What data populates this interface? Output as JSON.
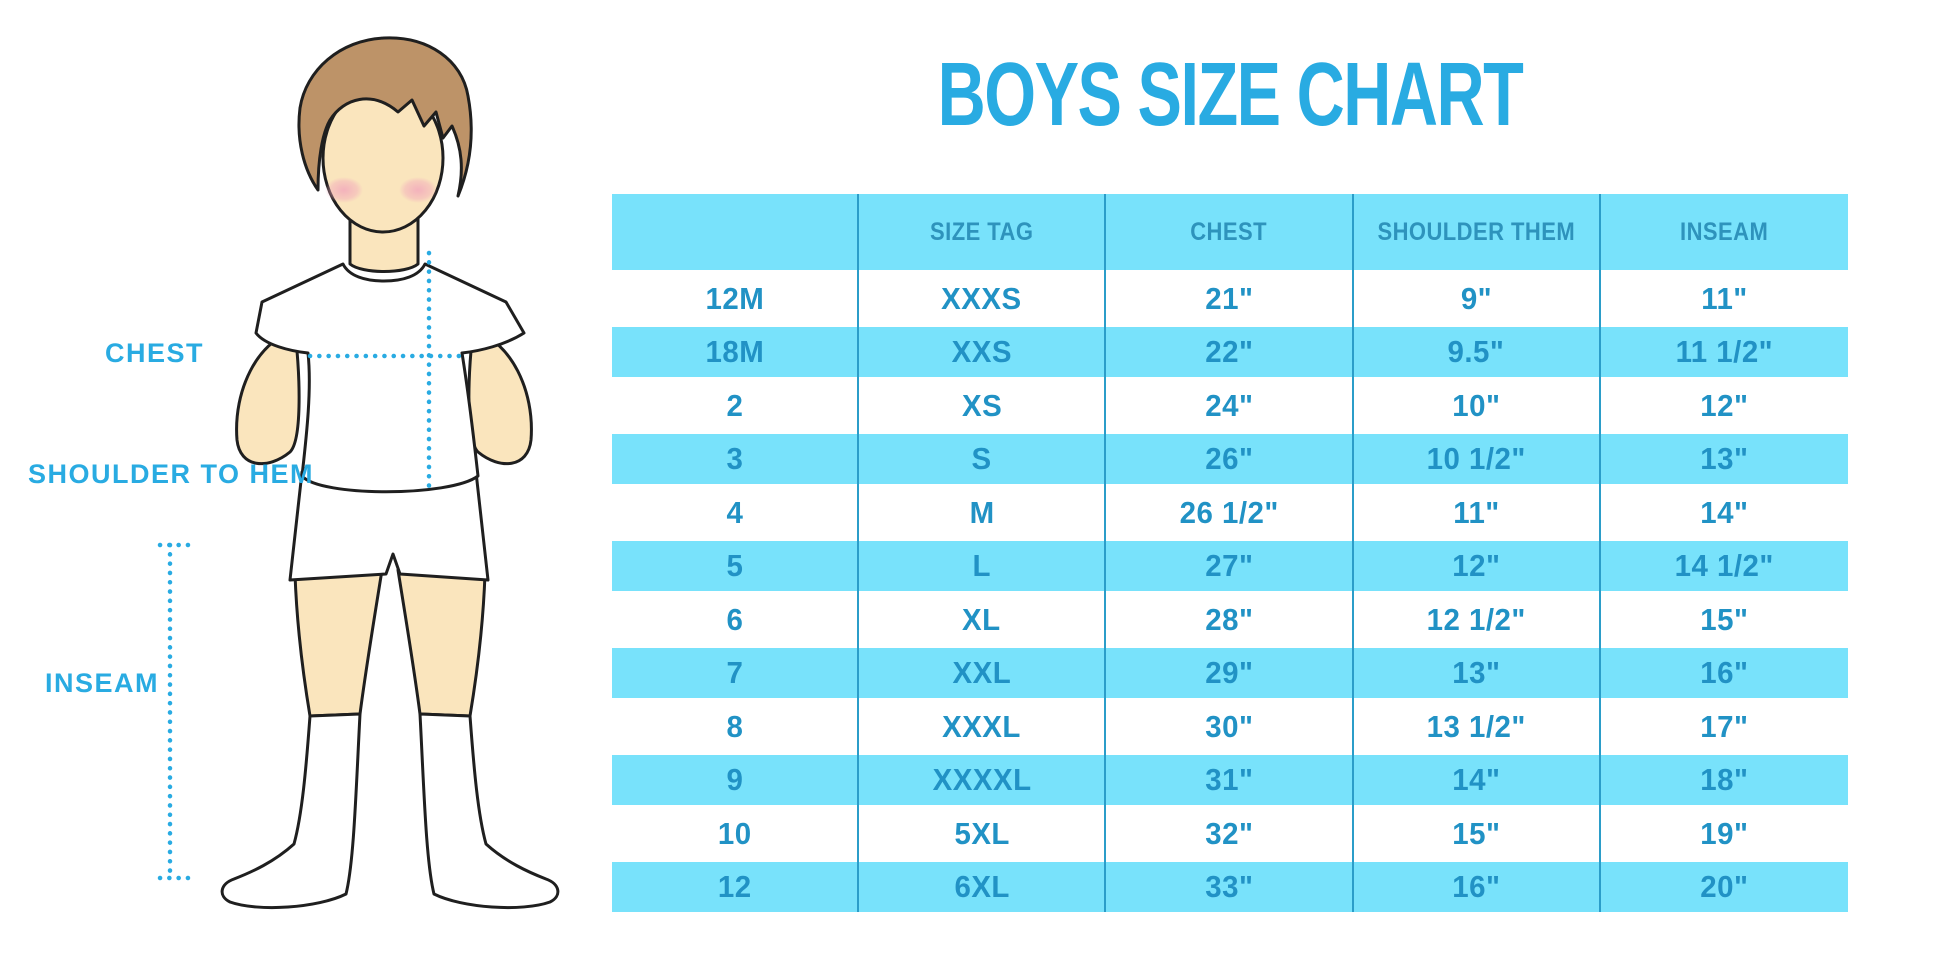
{
  "page": {
    "title_label": "BOYS SIZE CHART"
  },
  "figure": {
    "illustration": "boy-front-standing",
    "labels": {
      "chest": "CHEST",
      "shoulder_to_hem": "SHOULDER TO HEM",
      "inseam": "INSEAM"
    }
  },
  "table": {
    "columns": [
      "",
      "SIZE TAG",
      "CHEST",
      "SHOULDER THEM",
      "INSEAM"
    ],
    "rows": [
      [
        "12M",
        "XXXS",
        "21\"",
        "9\"",
        "11\""
      ],
      [
        "18M",
        "XXS",
        "22\"",
        "9.5\"",
        "11 1/2\""
      ],
      [
        "2",
        "XS",
        "24\"",
        "10\"",
        "12\""
      ],
      [
        "3",
        "S",
        "26\"",
        "10 1/2\"",
        "13\""
      ],
      [
        "4",
        "M",
        "26 1/2\"",
        "11\"",
        "14\""
      ],
      [
        "5",
        "L",
        "27\"",
        "12\"",
        "14 1/2\""
      ],
      [
        "6",
        "XL",
        "28\"",
        "12 1/2\"",
        "15\""
      ],
      [
        "7",
        "XXL",
        "29\"",
        "13\"",
        "16\""
      ],
      [
        "8",
        "XXXL",
        "30\"",
        "13 1/2\"",
        "17\""
      ],
      [
        "9",
        "XXXXL",
        "31\"",
        "14\"",
        "18\""
      ],
      [
        "10",
        "5XL",
        "32\"",
        "15\"",
        "19\""
      ],
      [
        "12",
        "6XL",
        "33\"",
        "16\"",
        "20\""
      ]
    ]
  },
  "colors": {
    "accent_blue": "#29ABE2",
    "stripe_blue": "#78E2FB",
    "grid_line_blue": "#2B9DC9",
    "header_text_blue": "#2E93BC",
    "cell_text_blue": "#2192C5",
    "hair_brown": "#BD9368",
    "skin": "#FAE5BD",
    "blush_pink": "#F2A9BC"
  }
}
